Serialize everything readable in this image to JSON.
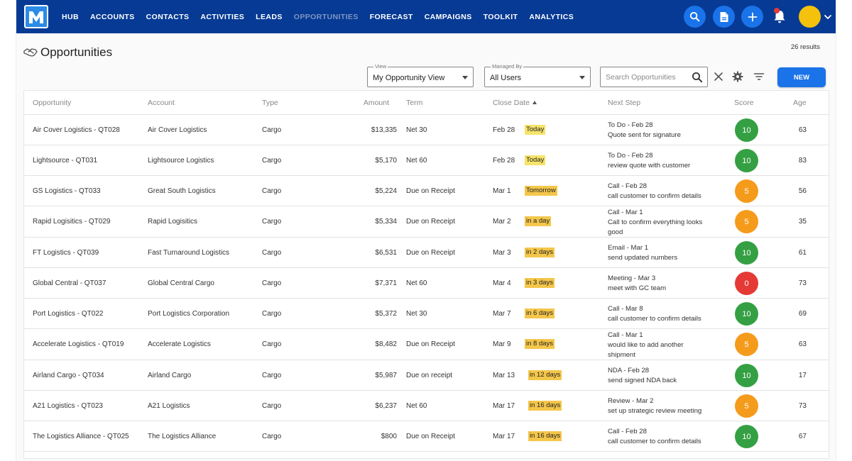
{
  "nav": {
    "logo_letter": "M",
    "items": [
      {
        "label": "HUB",
        "active": false
      },
      {
        "label": "ACCOUNTS",
        "active": false
      },
      {
        "label": "CONTACTS",
        "active": false
      },
      {
        "label": "ACTIVITIES",
        "active": false
      },
      {
        "label": "LEADS",
        "active": false
      },
      {
        "label": "OPPORTUNITIES",
        "active": true
      },
      {
        "label": "FORECAST",
        "active": false
      },
      {
        "label": "CAMPAIGNS",
        "active": false
      },
      {
        "label": "TOOLKIT",
        "active": false
      },
      {
        "label": "ANALYTICS",
        "active": false
      }
    ],
    "right_icons": [
      "search-icon",
      "document-icon",
      "plus-icon",
      "bell-icon",
      "avatar",
      "chevron-down-icon"
    ]
  },
  "page": {
    "title": "Opportunities",
    "results": "26 results"
  },
  "filters": {
    "view_label": "View",
    "view_value": "My Opportunity View",
    "managed_label": "Managed By",
    "managed_value": "All Users",
    "search_placeholder": "Search Opportunities",
    "new_button": "NEW"
  },
  "colors": {
    "nav_bg": "#063a94",
    "accent": "#1a73e8",
    "score_green": "#34a043",
    "score_orange": "#f59b1b",
    "score_red": "#e53935",
    "badge_today": "#f6e36a",
    "badge_soon": "#f4c64a"
  },
  "table": {
    "columns": [
      "Opportunity",
      "Account",
      "Type",
      "Amount",
      "Term",
      "Close Date",
      "Next Step",
      "Score",
      "Age"
    ],
    "sorted_column": "Close Date",
    "rows": [
      {
        "opportunity": "Air Cover Logistics - QT028",
        "account": "Air Cover Logistics",
        "type": "Cargo",
        "amount": "$13,335",
        "term": "Net 30",
        "close": "Feb 28",
        "badge": "Today",
        "badge_color": "#f6e36a",
        "next": [
          "To Do - Feb 28",
          "Quote sent for signature"
        ],
        "score": "10",
        "score_color": "#34a043",
        "age": "63"
      },
      {
        "opportunity": "Lightsource - QT031",
        "account": "Lightsource Logistics",
        "type": "Cargo",
        "amount": "$5,170",
        "term": "Net 60",
        "close": "Feb 28",
        "badge": "Today",
        "badge_color": "#f6e36a",
        "next": [
          "To Do - Feb 28",
          "review quote with customer"
        ],
        "score": "10",
        "score_color": "#34a043",
        "age": "83"
      },
      {
        "opportunity": "GS Logistics - QT033",
        "account": "Great South Logistics",
        "type": "Cargo",
        "amount": "$5,224",
        "term": "Due on Receipt",
        "close": "Mar 1",
        "badge": "Tomorrow",
        "badge_color": "#f4c64a",
        "next": [
          "Call - Feb 28",
          "call customer to confirm details"
        ],
        "score": "5",
        "score_color": "#f59b1b",
        "age": "56"
      },
      {
        "opportunity": "Rapid Logisitics - QT029",
        "account": "Rapid Logisitics",
        "type": "Cargo",
        "amount": "$5,334",
        "term": "Due on Receipt",
        "close": "Mar 2",
        "badge": "in a day",
        "badge_color": "#f4c64a",
        "next": [
          "Call - Mar 1",
          "Call to confirm everything looks",
          "good"
        ],
        "score": "5",
        "score_color": "#f59b1b",
        "age": "35"
      },
      {
        "opportunity": "FT Logistics - QT039",
        "account": "Fast Turnaround Logistics",
        "type": "Cargo",
        "amount": "$6,531",
        "term": "Due on Receipt",
        "close": "Mar 3",
        "badge": "in 2 days",
        "badge_color": "#f4c64a",
        "next": [
          "Email - Mar 1",
          "send updated numbers"
        ],
        "score": "10",
        "score_color": "#34a043",
        "age": "61"
      },
      {
        "opportunity": "Global Central - QT037",
        "account": "Global Central Cargo",
        "type": "Cargo",
        "amount": "$7,371",
        "term": "Net 60",
        "close": "Mar 4",
        "badge": "in 3 days",
        "badge_color": "#f4c64a",
        "next": [
          "Meeting - Mar 3",
          "meet with GC team"
        ],
        "score": "0",
        "score_color": "#e53935",
        "age": "73"
      },
      {
        "opportunity": "Port Logistics - QT022",
        "account": "Port Logistics Corporation",
        "type": "Cargo",
        "amount": "$5,372",
        "term": "Net 30",
        "close": "Mar 7",
        "badge": "in 6 days",
        "badge_color": "#f4c64a",
        "next": [
          "Call - Mar 8",
          "call customer to confirm details"
        ],
        "score": "10",
        "score_color": "#34a043",
        "age": "69"
      },
      {
        "opportunity": "Accelerate Logistics - QT019",
        "account": "Accelerate Logistics",
        "type": "Cargo",
        "amount": "$8,482",
        "term": "Due on Receipt",
        "close": "Mar 9",
        "badge": "in 8 days",
        "badge_color": "#f4c64a",
        "next": [
          "Call - Mar 1",
          "would like to add another",
          "shipment"
        ],
        "score": "5",
        "score_color": "#f59b1b",
        "age": "63"
      },
      {
        "opportunity": "Airland Cargo - QT034",
        "account": "Airland Cargo",
        "type": "Cargo",
        "amount": "$5,987",
        "term": "Due on receipt",
        "close": "Mar 13",
        "badge": "in 12 days",
        "badge_color": "#f4c64a",
        "next": [
          "NDA - Feb 28",
          "send signed NDA back"
        ],
        "score": "10",
        "score_color": "#34a043",
        "age": "17"
      },
      {
        "opportunity": "A21 Logistics - QT023",
        "account": "A21 Logistics",
        "type": "Cargo",
        "amount": "$6,237",
        "term": "Net 60",
        "close": "Mar 17",
        "badge": "in 16 days",
        "badge_color": "#f4c64a",
        "next": [
          "Review - Mar 2",
          "set up strategic review meeting"
        ],
        "score": "5",
        "score_color": "#f59b1b",
        "age": "73"
      },
      {
        "opportunity": "The Logistics Alliance - QT025",
        "account": "The Logistics Alliance",
        "type": "Cargo",
        "amount": "$800",
        "term": "Due on Receipt",
        "close": "Mar 17",
        "badge": "in 16 days",
        "badge_color": "#f4c64a",
        "next": [
          "Call - Feb 28",
          "call customer to confirm details"
        ],
        "score": "10",
        "score_color": "#34a043",
        "age": "67"
      }
    ]
  }
}
